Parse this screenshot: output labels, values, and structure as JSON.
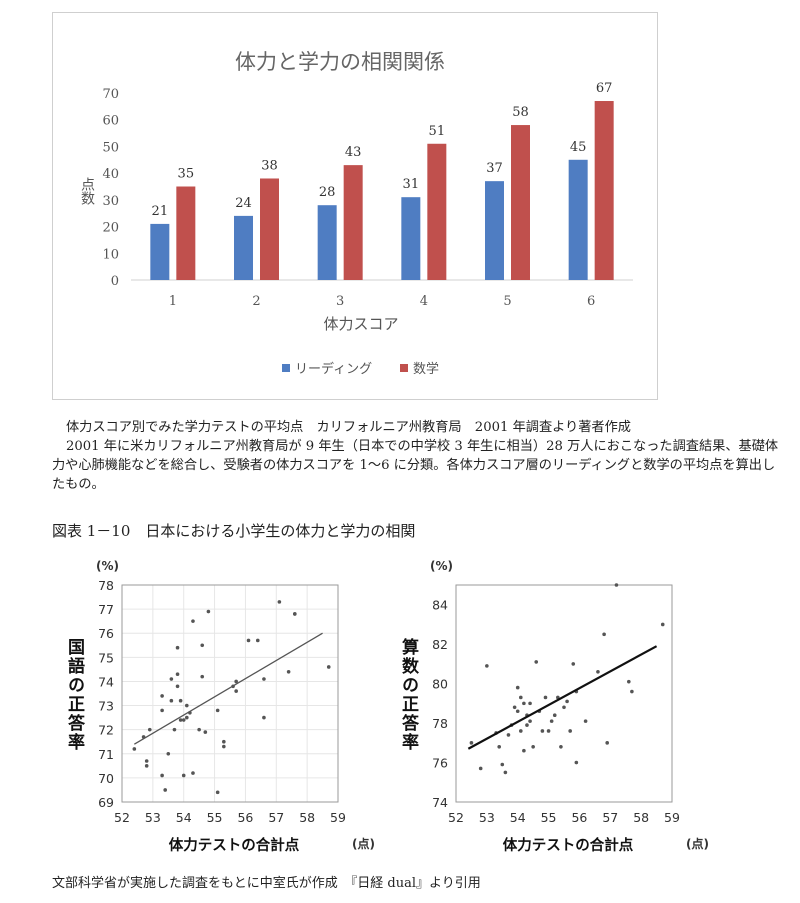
{
  "chart_data": [
    {
      "type": "bar",
      "title": "体力と学力の相関関係",
      "xlabel": "体力スコア",
      "ylabel": "点数",
      "categories": [
        "1",
        "2",
        "3",
        "4",
        "5",
        "6"
      ],
      "series": [
        {
          "name": "リーディング",
          "color": "#4f7dc2",
          "values": [
            21,
            24,
            28,
            31,
            37,
            45
          ]
        },
        {
          "name": "数学",
          "color": "#c0504d",
          "values": [
            35,
            38,
            43,
            51,
            58,
            67
          ]
        }
      ],
      "ylim": [
        0,
        70
      ],
      "yticks": [
        0,
        10,
        20,
        30,
        40,
        50,
        60,
        70
      ],
      "grid": false,
      "legend": "bottom"
    },
    {
      "type": "scatter",
      "ylabel": "国語の正答率",
      "yunit": "(%)",
      "xlabel": "体力テストの合計点",
      "xunit": "(点)",
      "xlim": [
        52,
        59
      ],
      "ylim": [
        69,
        78
      ],
      "xticks": [
        52,
        53,
        54,
        55,
        56,
        57,
        58,
        59
      ],
      "yticks": [
        69,
        70,
        71,
        72,
        73,
        74,
        75,
        76,
        77,
        78
      ],
      "grid": true,
      "points": [
        [
          52.4,
          71.2
        ],
        [
          52.7,
          71.7
        ],
        [
          52.8,
          70.7
        ],
        [
          52.8,
          70.5
        ],
        [
          52.9,
          72.0
        ],
        [
          53.3,
          70.1
        ],
        [
          53.3,
          72.8
        ],
        [
          53.3,
          73.4
        ],
        [
          53.4,
          69.5
        ],
        [
          53.5,
          71.0
        ],
        [
          53.6,
          73.2
        ],
        [
          53.6,
          74.1
        ],
        [
          53.7,
          72.0
        ],
        [
          53.8,
          73.8
        ],
        [
          53.8,
          74.3
        ],
        [
          53.8,
          75.4
        ],
        [
          53.9,
          72.4
        ],
        [
          53.9,
          73.2
        ],
        [
          54.0,
          70.1
        ],
        [
          54.0,
          72.4
        ],
        [
          54.1,
          72.5
        ],
        [
          54.1,
          73.0
        ],
        [
          54.2,
          72.7
        ],
        [
          54.3,
          70.2
        ],
        [
          54.3,
          76.5
        ],
        [
          54.5,
          72.0
        ],
        [
          54.6,
          74.2
        ],
        [
          54.6,
          75.5
        ],
        [
          54.7,
          71.9
        ],
        [
          54.8,
          76.9
        ],
        [
          55.1,
          72.8
        ],
        [
          55.1,
          69.4
        ],
        [
          55.3,
          71.5
        ],
        [
          55.3,
          71.3
        ],
        [
          55.6,
          73.8
        ],
        [
          55.7,
          74.0
        ],
        [
          55.7,
          73.6
        ],
        [
          56.1,
          75.7
        ],
        [
          56.4,
          75.7
        ],
        [
          56.6,
          74.1
        ],
        [
          56.6,
          72.5
        ],
        [
          57.1,
          77.3
        ],
        [
          57.4,
          74.4
        ],
        [
          57.6,
          76.8
        ],
        [
          57.6,
          76.8
        ],
        [
          58.7,
          74.6
        ]
      ],
      "trend": [
        [
          52.4,
          71.4
        ],
        [
          58.5,
          76.0
        ]
      ]
    },
    {
      "type": "scatter",
      "ylabel": "算数の正答率",
      "yunit": "(%)",
      "xlabel": "体力テストの合計点",
      "xunit": "(点)",
      "xlim": [
        52,
        59
      ],
      "ylim": [
        74,
        85
      ],
      "xticks": [
        52,
        53,
        54,
        55,
        56,
        57,
        58,
        59
      ],
      "yticks": [
        74,
        76,
        78,
        80,
        82,
        84
      ],
      "grid": false,
      "points": [
        [
          52.5,
          77.0
        ],
        [
          52.8,
          75.7
        ],
        [
          53.0,
          80.9
        ],
        [
          53.3,
          77.5
        ],
        [
          53.4,
          76.8
        ],
        [
          53.5,
          75.9
        ],
        [
          53.6,
          75.5
        ],
        [
          53.7,
          77.4
        ],
        [
          53.8,
          77.9
        ],
        [
          53.9,
          78.8
        ],
        [
          54.0,
          79.8
        ],
        [
          54.0,
          78.6
        ],
        [
          54.1,
          77.6
        ],
        [
          54.1,
          79.3
        ],
        [
          54.2,
          76.6
        ],
        [
          54.2,
          79.0
        ],
        [
          54.3,
          77.9
        ],
        [
          54.3,
          78.4
        ],
        [
          54.4,
          79.0
        ],
        [
          54.4,
          78.1
        ],
        [
          54.5,
          76.8
        ],
        [
          54.6,
          81.1
        ],
        [
          54.7,
          78.6
        ],
        [
          54.8,
          77.6
        ],
        [
          54.9,
          79.3
        ],
        [
          55.0,
          77.6
        ],
        [
          55.1,
          78.1
        ],
        [
          55.2,
          78.4
        ],
        [
          55.3,
          79.3
        ],
        [
          55.4,
          76.8
        ],
        [
          55.5,
          78.8
        ],
        [
          55.6,
          79.1
        ],
        [
          55.7,
          77.6
        ],
        [
          55.8,
          81.0
        ],
        [
          55.9,
          79.6
        ],
        [
          55.9,
          76.0
        ],
        [
          56.2,
          78.1
        ],
        [
          56.6,
          80.6
        ],
        [
          56.8,
          82.5
        ],
        [
          56.9,
          77.0
        ],
        [
          57.2,
          85.0
        ],
        [
          57.6,
          80.1
        ],
        [
          57.7,
          79.6
        ],
        [
          58.7,
          83.0
        ]
      ],
      "trend": [
        [
          52.4,
          76.7
        ],
        [
          58.5,
          81.9
        ]
      ]
    }
  ],
  "captions": {
    "line1": "体力スコア別でみた学力テストの平均点　カリフォルニア州教育局　2001 年調査より著者作成",
    "line2": "2001 年に米カリフォルニア州教育局が 9 年生（日本での中学校 3 年生に相当）28 万人におこなった調査結果、基礎体力や心肺機能などを総合し、受験者の体力スコアを 1〜6 に分類。各体力スコア層のリーディングと数学の平均点を算出したもの。"
  },
  "figure_title": "図表 1－10　日本における小学生の体力と学力の相関",
  "source": "文部科学省が実施した調査をもとに中室氏が作成　『日経 dual』より引用"
}
